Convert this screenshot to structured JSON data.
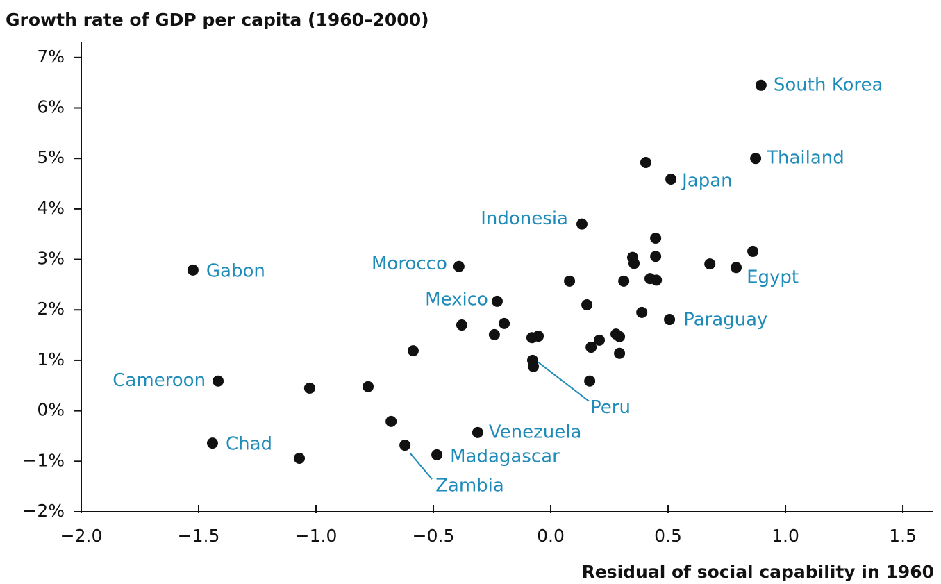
{
  "chart_data": {
    "type": "scatter",
    "title": "Growth rate of GDP per capita (1960–2000)",
    "x_label": "Residual of social capability in 1960",
    "color": "#111111",
    "label_color": "#1f8bb8",
    "x": [
      0.896,
      0.873,
      0.512,
      0.133,
      -1.524,
      -0.391,
      0.79,
      -0.228,
      0.506,
      -1.417,
      -0.074,
      -0.311,
      -1.441,
      -0.485,
      -0.621,
      0.405,
      0.447,
      0.349,
      0.355,
      0.447,
      0.861,
      0.678,
      0.08,
      0.311,
      0.423,
      0.45,
      0.154,
      0.388,
      -0.379,
      -0.198,
      -0.24,
      -0.08,
      -0.053,
      -0.586,
      0.207,
      0.278,
      0.293,
      0.172,
      0.293,
      -0.077,
      0.166,
      -1.027,
      -0.778,
      -0.68,
      -1.071
    ],
    "y": [
      6.45,
      5.0,
      4.59,
      3.7,
      2.79,
      2.86,
      2.84,
      2.17,
      1.81,
      0.59,
      0.88,
      -0.43,
      -0.64,
      -0.87,
      -0.68,
      4.92,
      3.42,
      3.04,
      2.92,
      3.06,
      3.16,
      2.91,
      2.57,
      2.57,
      2.62,
      2.59,
      2.1,
      1.95,
      1.7,
      1.73,
      1.51,
      1.45,
      1.48,
      1.19,
      1.4,
      1.52,
      1.47,
      1.26,
      1.14,
      1.0,
      0.59,
      0.45,
      0.48,
      -0.21,
      -0.94
    ],
    "labels": [
      "South Korea",
      "Thailand",
      "Japan",
      "Indonesia",
      "Gabon",
      "Morocco",
      "Egypt",
      "Mexico",
      "Paraguay",
      "Cameroon",
      "Peru",
      "Venezuela",
      "Chad",
      "Madagascar",
      "Zambia",
      null,
      null,
      null,
      null,
      null,
      null,
      null,
      null,
      null,
      null,
      null,
      null,
      null,
      null,
      null,
      null,
      null,
      null,
      null,
      null,
      null,
      null,
      null,
      null,
      null,
      null,
      null,
      null,
      null,
      null
    ],
    "xlim": [
      -2.0,
      1.63
    ],
    "ylim": [
      -2,
      7.3
    ],
    "xticks": [
      {
        "value": -2.0,
        "label": "−2.0"
      },
      {
        "value": -1.5,
        "label": "−1.5"
      },
      {
        "value": -1.0,
        "label": "−1.0"
      },
      {
        "value": -0.5,
        "label": "−0.5"
      },
      {
        "value": 0,
        "label": "0.0"
      },
      0.5,
      {
        "value": 1.0,
        "label": "1.0"
      },
      1.5
    ],
    "yticks": [
      {
        "value": -2,
        "label": "−2%"
      },
      {
        "value": -1,
        "label": "−1%"
      },
      {
        "value": 0,
        "label": "0%"
      },
      {
        "value": 1,
        "label": "1%"
      },
      {
        "value": 2,
        "label": "2%"
      },
      {
        "value": 3,
        "label": "3%"
      },
      {
        "value": 4,
        "label": "4%"
      },
      {
        "value": 5,
        "label": "5%"
      },
      {
        "value": 6,
        "label": "6%"
      },
      {
        "value": 7,
        "label": "7%"
      }
    ]
  }
}
